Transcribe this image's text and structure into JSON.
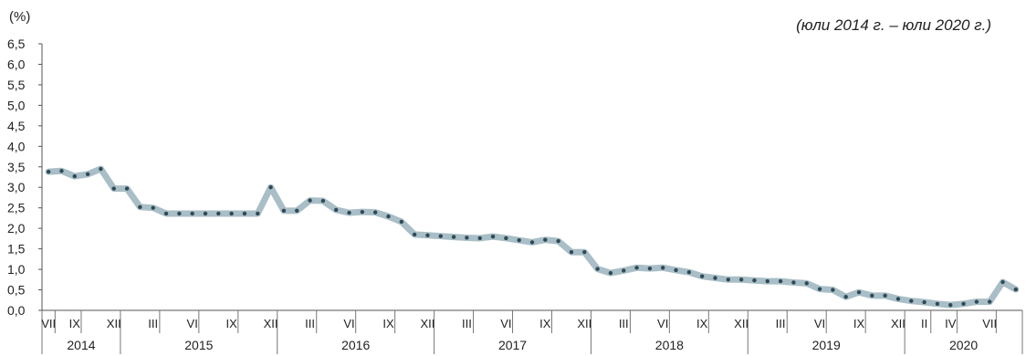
{
  "chart_data": {
    "type": "line",
    "unit_label": "(%)",
    "subtitle": "(юли 2014 г. – юли 2020 г.)",
    "ylim": [
      0,
      6.5
    ],
    "yticks": [
      "0,0",
      "0,5",
      "1,0",
      "1,5",
      "2,0",
      "2,5",
      "3,0",
      "3,5",
      "4,0",
      "4,5",
      "5,0",
      "5,5",
      "6,0",
      "6,5"
    ],
    "month_labels": [
      "VII",
      "IX",
      "XII",
      "III",
      "VI",
      "IX",
      "XII",
      "III",
      "VI",
      "IX",
      "XII",
      "III",
      "VI",
      "IX",
      "XII",
      "III",
      "VI",
      "IX",
      "XII",
      "III",
      "VI",
      "IX",
      "XII",
      "II",
      "IV",
      "VII"
    ],
    "years": [
      "2014",
      "2015",
      "2016",
      "2017",
      "2018",
      "2019",
      "2020"
    ],
    "line_color": "#a9bec6",
    "marker_color": "#2e4a57",
    "values": [
      3.38,
      3.4,
      3.27,
      3.32,
      3.45,
      2.97,
      2.97,
      2.52,
      2.5,
      2.36,
      2.36,
      2.36,
      2.36,
      2.36,
      2.36,
      2.36,
      2.36,
      3.0,
      2.43,
      2.43,
      2.68,
      2.67,
      2.45,
      2.38,
      2.4,
      2.39,
      2.29,
      2.16,
      1.85,
      1.83,
      1.81,
      1.79,
      1.77,
      1.76,
      1.8,
      1.76,
      1.71,
      1.66,
      1.72,
      1.69,
      1.42,
      1.42,
      1.01,
      0.91,
      0.97,
      1.04,
      1.02,
      1.04,
      0.98,
      0.93,
      0.83,
      0.79,
      0.75,
      0.75,
      0.73,
      0.71,
      0.71,
      0.68,
      0.66,
      0.52,
      0.5,
      0.33,
      0.44,
      0.36,
      0.36,
      0.28,
      0.23,
      0.2,
      0.16,
      0.13,
      0.16,
      0.21,
      0.21,
      0.69,
      0.51
    ]
  }
}
